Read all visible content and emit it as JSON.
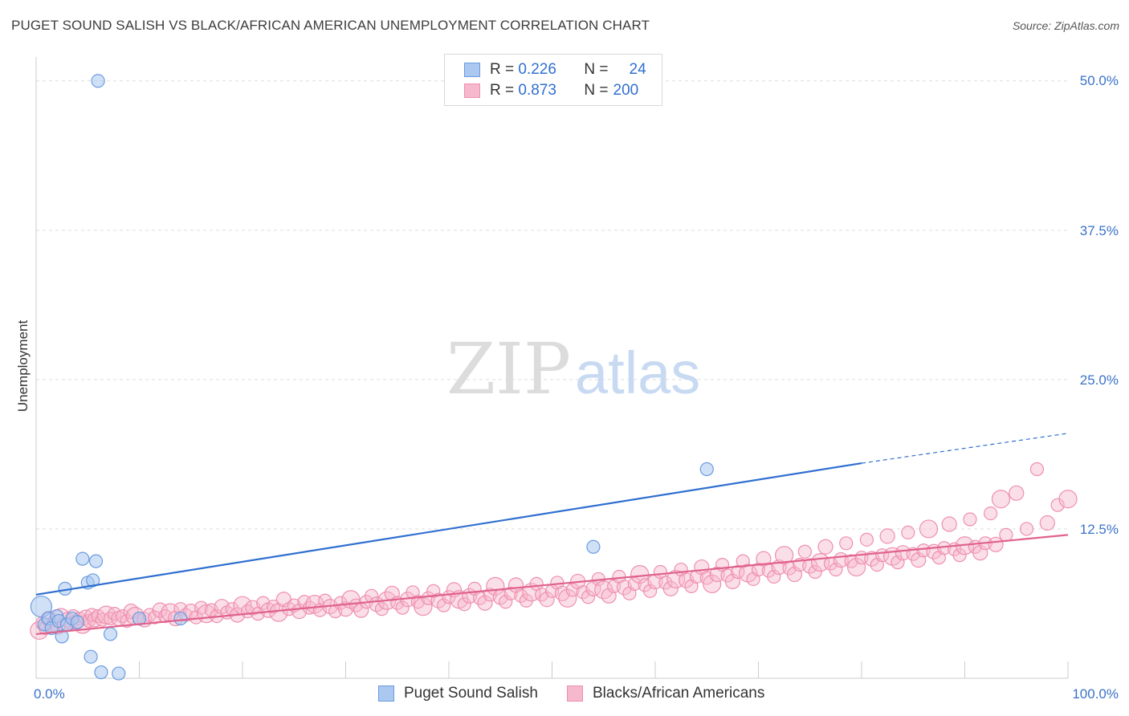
{
  "title": "PUGET SOUND SALISH VS BLACK/AFRICAN AMERICAN UNEMPLOYMENT CORRELATION CHART",
  "source": "Source: ZipAtlas.com",
  "watermark": {
    "zip": "ZIP",
    "atlas": "atlas"
  },
  "colors": {
    "blue": "#2f6fd0",
    "blue_fill": "#aac8f0",
    "blue_stroke": "#6a9be0",
    "pink": "#e0628c",
    "pink_fill": "#f6b8cc",
    "pink_stroke": "#ee8fae",
    "grid": "#dddddd",
    "tick_label": "#3b72c8"
  },
  "legend": {
    "rows": [
      {
        "r_label": "R = ",
        "r_value": "0.226",
        "n_label": "N = ",
        "n_value": "24"
      },
      {
        "r_label": "R = ",
        "r_value": "0.873",
        "n_label": "N = ",
        "n_value": "200"
      }
    ],
    "bottom": [
      "Puget Sound Salish",
      "Blacks/African Americans"
    ]
  },
  "chart_data": {
    "type": "scatter",
    "title": "PUGET SOUND SALISH VS BLACK/AFRICAN AMERICAN UNEMPLOYMENT CORRELATION CHART",
    "xlabel": "",
    "ylabel": "Unemployment",
    "xlim": [
      0,
      100
    ],
    "ylim": [
      0,
      52
    ],
    "x_tick_labels": [
      "0.0%",
      "100.0%"
    ],
    "y_ticks": [
      12.5,
      25.0,
      37.5,
      50.0
    ],
    "y_tick_labels": [
      "12.5%",
      "25.0%",
      "37.5%",
      "50.0%"
    ],
    "grid": true,
    "legend_position": "top-center",
    "series": [
      {
        "name": "Puget Sound Salish",
        "color": "#6a9be0",
        "r": 0.226,
        "n": 24,
        "trend": {
          "x": [
            0,
            80
          ],
          "y": [
            7.0,
            18.0
          ],
          "dashed_to": [
            100,
            20.5
          ]
        },
        "points": [
          [
            0.5,
            6.0
          ],
          [
            0.8,
            4.5
          ],
          [
            1.2,
            5.0
          ],
          [
            1.5,
            4.2
          ],
          [
            2.0,
            5.2
          ],
          [
            2.2,
            4.8
          ],
          [
            2.5,
            3.5
          ],
          [
            2.8,
            7.5
          ],
          [
            3.0,
            4.5
          ],
          [
            3.5,
            5.0
          ],
          [
            4.0,
            4.7
          ],
          [
            4.5,
            10.0
          ],
          [
            5.0,
            8.0
          ],
          [
            5.3,
            1.8
          ],
          [
            5.5,
            8.2
          ],
          [
            5.8,
            9.8
          ],
          [
            6.0,
            50.0
          ],
          [
            6.3,
            0.5
          ],
          [
            7.2,
            3.7
          ],
          [
            8.0,
            0.4
          ],
          [
            10.0,
            5.0
          ],
          [
            14.0,
            5.0
          ],
          [
            54.0,
            11.0
          ],
          [
            65.0,
            17.5
          ]
        ]
      },
      {
        "name": "Blacks/African Americans",
        "color": "#ee8fae",
        "r": 0.873,
        "n": 200,
        "trend": {
          "x": [
            0,
            100
          ],
          "y": [
            3.7,
            12.0
          ]
        },
        "points": [
          [
            0.3,
            4.0
          ],
          [
            0.6,
            4.6
          ],
          [
            0.9,
            4.2
          ],
          [
            1.2,
            5.0
          ],
          [
            1.5,
            4.4
          ],
          [
            1.8,
            4.8
          ],
          [
            2.1,
            4.3
          ],
          [
            2.4,
            5.1
          ],
          [
            2.7,
            4.5
          ],
          [
            3.0,
            4.9
          ],
          [
            3.3,
            4.6
          ],
          [
            3.6,
            5.2
          ],
          [
            3.9,
            4.7
          ],
          [
            4.2,
            5.0
          ],
          [
            4.5,
            4.5
          ],
          [
            4.8,
            5.1
          ],
          [
            5.1,
            4.8
          ],
          [
            5.4,
            5.3
          ],
          [
            5.7,
            4.9
          ],
          [
            6.0,
            5.2
          ],
          [
            6.4,
            4.9
          ],
          [
            6.8,
            5.3
          ],
          [
            7.2,
            5.0
          ],
          [
            7.6,
            5.4
          ],
          [
            8.0,
            5.0
          ],
          [
            8.4,
            5.2
          ],
          [
            8.8,
            4.8
          ],
          [
            9.2,
            5.6
          ],
          [
            9.6,
            5.2
          ],
          [
            10.0,
            5.0
          ],
          [
            10.5,
            4.9
          ],
          [
            11.0,
            5.3
          ],
          [
            11.5,
            5.1
          ],
          [
            12.0,
            5.7
          ],
          [
            12.5,
            5.2
          ],
          [
            13.0,
            5.5
          ],
          [
            13.5,
            5.0
          ],
          [
            14.0,
            5.8
          ],
          [
            14.5,
            5.3
          ],
          [
            15.0,
            5.6
          ],
          [
            15.5,
            5.1
          ],
          [
            16.0,
            5.9
          ],
          [
            16.5,
            5.4
          ],
          [
            17.0,
            5.7
          ],
          [
            17.5,
            5.2
          ],
          [
            18.0,
            6.0
          ],
          [
            18.5,
            5.5
          ],
          [
            19.0,
            5.8
          ],
          [
            19.5,
            5.3
          ],
          [
            20.0,
            6.1
          ],
          [
            20.5,
            5.6
          ],
          [
            21.0,
            5.9
          ],
          [
            21.5,
            5.4
          ],
          [
            22.0,
            6.3
          ],
          [
            22.5,
            5.7
          ],
          [
            23.0,
            6.0
          ],
          [
            23.5,
            5.5
          ],
          [
            24.0,
            6.6
          ],
          [
            24.5,
            5.8
          ],
          [
            25.0,
            6.1
          ],
          [
            25.5,
            5.6
          ],
          [
            26.0,
            6.4
          ],
          [
            26.5,
            5.9
          ],
          [
            27.0,
            6.2
          ],
          [
            27.5,
            5.7
          ],
          [
            28.0,
            6.5
          ],
          [
            28.5,
            6.0
          ],
          [
            29.0,
            5.6
          ],
          [
            29.5,
            6.3
          ],
          [
            30.0,
            5.8
          ],
          [
            30.5,
            6.6
          ],
          [
            31.0,
            6.1
          ],
          [
            31.5,
            5.7
          ],
          [
            32.0,
            6.4
          ],
          [
            32.5,
            6.9
          ],
          [
            33.0,
            6.2
          ],
          [
            33.5,
            5.8
          ],
          [
            34.0,
            6.5
          ],
          [
            34.5,
            7.1
          ],
          [
            35.0,
            6.3
          ],
          [
            35.5,
            5.9
          ],
          [
            36.0,
            6.6
          ],
          [
            36.5,
            7.2
          ],
          [
            37.0,
            6.4
          ],
          [
            37.5,
            6.0
          ],
          [
            38.0,
            6.7
          ],
          [
            38.5,
            7.3
          ],
          [
            39.0,
            6.5
          ],
          [
            39.5,
            6.1
          ],
          [
            40.0,
            6.8
          ],
          [
            40.5,
            7.4
          ],
          [
            41.0,
            6.6
          ],
          [
            41.5,
            6.2
          ],
          [
            42.0,
            6.9
          ],
          [
            42.5,
            7.5
          ],
          [
            43.0,
            6.7
          ],
          [
            43.5,
            6.3
          ],
          [
            44.0,
            7.0
          ],
          [
            44.5,
            7.7
          ],
          [
            45.0,
            6.8
          ],
          [
            45.5,
            6.4
          ],
          [
            46.0,
            7.1
          ],
          [
            46.5,
            7.8
          ],
          [
            47.0,
            6.9
          ],
          [
            47.5,
            6.5
          ],
          [
            48.0,
            7.2
          ],
          [
            48.5,
            7.9
          ],
          [
            49.0,
            7.0
          ],
          [
            49.5,
            6.6
          ],
          [
            50.0,
            7.3
          ],
          [
            50.5,
            8.0
          ],
          [
            51.0,
            7.1
          ],
          [
            51.5,
            6.7
          ],
          [
            52.0,
            7.4
          ],
          [
            52.5,
            8.1
          ],
          [
            53.0,
            7.2
          ],
          [
            53.5,
            6.8
          ],
          [
            54.0,
            7.5
          ],
          [
            54.5,
            8.3
          ],
          [
            55.0,
            7.4
          ],
          [
            55.5,
            6.9
          ],
          [
            56.0,
            7.7
          ],
          [
            56.5,
            8.5
          ],
          [
            57.0,
            7.6
          ],
          [
            57.5,
            7.1
          ],
          [
            58.0,
            7.9
          ],
          [
            58.5,
            8.7
          ],
          [
            59.0,
            7.8
          ],
          [
            59.5,
            7.3
          ],
          [
            60.0,
            8.1
          ],
          [
            60.5,
            8.9
          ],
          [
            61.0,
            8.0
          ],
          [
            61.5,
            7.5
          ],
          [
            62.0,
            8.3
          ],
          [
            62.5,
            9.1
          ],
          [
            63.0,
            8.2
          ],
          [
            63.5,
            7.7
          ],
          [
            64.0,
            8.5
          ],
          [
            64.5,
            9.3
          ],
          [
            65.0,
            8.4
          ],
          [
            65.5,
            7.9
          ],
          [
            66.0,
            8.7
          ],
          [
            66.5,
            9.5
          ],
          [
            67.0,
            8.6
          ],
          [
            67.5,
            8.1
          ],
          [
            68.0,
            8.9
          ],
          [
            68.5,
            9.8
          ],
          [
            69.0,
            8.8
          ],
          [
            69.5,
            8.3
          ],
          [
            70.0,
            9.1
          ],
          [
            70.5,
            10.0
          ],
          [
            71.0,
            9.0
          ],
          [
            71.5,
            8.5
          ],
          [
            72.0,
            9.3
          ],
          [
            72.5,
            10.3
          ],
          [
            73.0,
            9.2
          ],
          [
            73.5,
            8.7
          ],
          [
            74.0,
            9.5
          ],
          [
            74.5,
            10.6
          ],
          [
            75.0,
            9.4
          ],
          [
            75.5,
            8.9
          ],
          [
            76.0,
            9.7
          ],
          [
            76.5,
            11.0
          ],
          [
            77.0,
            9.6
          ],
          [
            77.5,
            9.1
          ],
          [
            78.0,
            9.9
          ],
          [
            78.5,
            11.3
          ],
          [
            79.0,
            9.8
          ],
          [
            79.5,
            9.3
          ],
          [
            80.0,
            10.1
          ],
          [
            80.5,
            11.6
          ],
          [
            81.0,
            10.0
          ],
          [
            81.5,
            9.5
          ],
          [
            82.0,
            10.3
          ],
          [
            82.5,
            11.9
          ],
          [
            83.0,
            10.2
          ],
          [
            83.5,
            9.7
          ],
          [
            84.0,
            10.5
          ],
          [
            84.5,
            12.2
          ],
          [
            85.0,
            10.4
          ],
          [
            85.5,
            9.9
          ],
          [
            86.0,
            10.7
          ],
          [
            86.5,
            12.5
          ],
          [
            87.0,
            10.6
          ],
          [
            87.5,
            10.1
          ],
          [
            88.0,
            10.9
          ],
          [
            88.5,
            12.9
          ],
          [
            89.0,
            10.8
          ],
          [
            89.5,
            10.3
          ],
          [
            90.0,
            11.1
          ],
          [
            90.5,
            13.3
          ],
          [
            91.0,
            11.0
          ],
          [
            91.5,
            10.5
          ],
          [
            92.0,
            11.3
          ],
          [
            92.5,
            13.8
          ],
          [
            93.0,
            11.2
          ],
          [
            93.5,
            15.0
          ],
          [
            94.0,
            12.0
          ],
          [
            95.0,
            15.5
          ],
          [
            96.0,
            12.5
          ],
          [
            97.0,
            17.5
          ],
          [
            98.0,
            13.0
          ],
          [
            99.0,
            14.5
          ],
          [
            100.0,
            15.0
          ]
        ]
      }
    ]
  }
}
